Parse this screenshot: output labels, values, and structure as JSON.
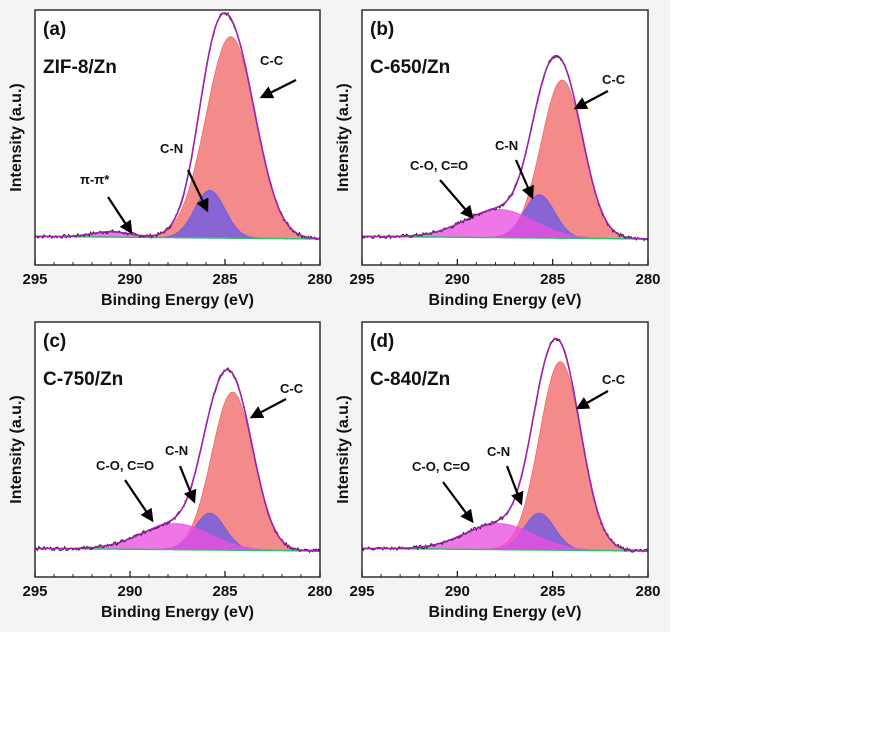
{
  "chart_data": [
    {
      "type": "area",
      "panel_label": "(a)",
      "sample": "ZIF-8/Zn",
      "xlabel": "Binding Energy (eV)",
      "ylabel": "Intensity (a.u.)",
      "xlim": [
        295,
        280
      ],
      "x_ticks": [
        "295",
        "290",
        "285",
        "280"
      ],
      "peaks": [
        {
          "label": "C-C",
          "center": 284.7,
          "height": 0.93,
          "width": 1.3,
          "color": "#f06a6a"
        },
        {
          "label": "C-N",
          "center": 285.8,
          "height": 0.22,
          "width": 0.8,
          "color": "#6a5ae8"
        },
        {
          "label": "π-π*",
          "center": 291.0,
          "height": 0.025,
          "width": 1.0,
          "color": "#ea4fe0"
        }
      ],
      "annotations": [
        {
          "text": "C-C",
          "points_to": 284.5
        },
        {
          "text": "C-N",
          "points_to": 285.8
        },
        {
          "text": "π-π*",
          "points_to": 291.0
        }
      ]
    },
    {
      "type": "area",
      "panel_label": "(b)",
      "sample": "C-650/Zn",
      "xlabel": "Binding Energy (eV)",
      "ylabel": "Intensity (a.u.)",
      "xlim": [
        295,
        280
      ],
      "x_ticks": [
        "295",
        "290",
        "285",
        "280"
      ],
      "peaks": [
        {
          "label": "C-C",
          "center": 284.5,
          "height": 0.73,
          "width": 1.1,
          "color": "#f06a6a"
        },
        {
          "label": "C-N",
          "center": 285.7,
          "height": 0.2,
          "width": 0.8,
          "color": "#6a5ae8"
        },
        {
          "label": "C-O, C=O",
          "center": 287.8,
          "height": 0.13,
          "width": 1.8,
          "color": "#ea4fe0"
        }
      ],
      "annotations": [
        {
          "text": "C-C",
          "points_to": 284.3
        },
        {
          "text": "C-N",
          "points_to": 285.7
        },
        {
          "text": "C-O, C=O",
          "points_to": 288.0
        }
      ]
    },
    {
      "type": "area",
      "panel_label": "(c)",
      "sample": "C-750/Zn",
      "xlabel": "Binding Energy (eV)",
      "ylabel": "Intensity (a.u.)",
      "xlim": [
        295,
        280
      ],
      "x_ticks": [
        "295",
        "290",
        "285",
        "280"
      ],
      "peaks": [
        {
          "label": "C-C",
          "center": 284.6,
          "height": 0.73,
          "width": 1.1,
          "color": "#f06a6a"
        },
        {
          "label": "C-N",
          "center": 285.8,
          "height": 0.17,
          "width": 0.8,
          "color": "#6a5ae8"
        },
        {
          "label": "C-O, C=O",
          "center": 287.6,
          "height": 0.12,
          "width": 1.8,
          "color": "#ea4fe0"
        }
      ],
      "annotations": [
        {
          "text": "C-C",
          "points_to": 284.3
        },
        {
          "text": "C-N",
          "points_to": 286.0
        },
        {
          "text": "C-O, C=O",
          "points_to": 288.5
        }
      ]
    },
    {
      "type": "area",
      "panel_label": "(d)",
      "sample": "C-840/Zn",
      "xlabel": "Binding Energy (eV)",
      "ylabel": "Intensity (a.u.)",
      "xlim": [
        295,
        280
      ],
      "x_ticks": [
        "295",
        "290",
        "285",
        "280"
      ],
      "peaks": [
        {
          "label": "C-C",
          "center": 284.6,
          "height": 0.87,
          "width": 1.1,
          "color": "#f06a6a"
        },
        {
          "label": "C-N",
          "center": 285.7,
          "height": 0.17,
          "width": 0.8,
          "color": "#6a5ae8"
        },
        {
          "label": "C-O, C=O",
          "center": 287.8,
          "height": 0.12,
          "width": 1.8,
          "color": "#ea4fe0"
        }
      ],
      "annotations": [
        {
          "text": "C-C",
          "points_to": 284.3
        },
        {
          "text": "C-N",
          "points_to": 285.8
        },
        {
          "text": "C-O, C=O",
          "points_to": 288.0
        }
      ]
    }
  ],
  "colors": {
    "envelope": "#a020b0",
    "raw_data": "#222222",
    "background_line": "#2fbf71"
  }
}
